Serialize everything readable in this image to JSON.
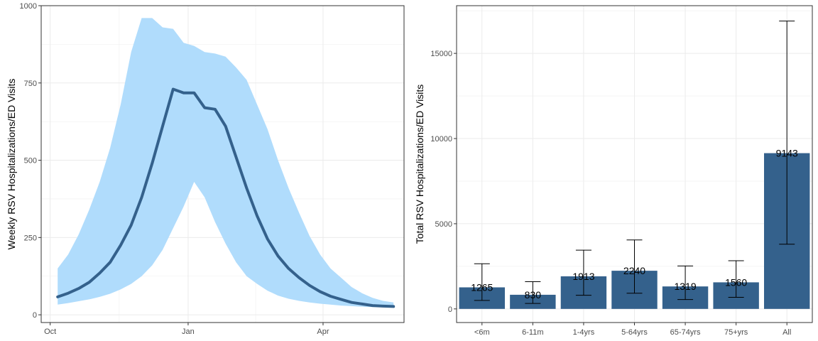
{
  "chart_data": [
    {
      "type": "line",
      "ylabel": "Weekly RSV Hospitalizations/ED Visits",
      "xlabel": "",
      "xlim": [
        "2021-09-25",
        "2022-05-25"
      ],
      "ylim": [
        -25,
        1000
      ],
      "x_ticks": [
        "Oct",
        "Jan",
        "Apr"
      ],
      "x_tick_dates": [
        "2021-10-01",
        "2022-01-01",
        "2022-04-01"
      ],
      "y_ticks": [
        0,
        250,
        500,
        750,
        1000
      ],
      "colors": {
        "line": "#34618c",
        "band": "#b0dcfc",
        "panel_border": "#333333",
        "grid": "#ebebeb"
      },
      "grid": true,
      "series": [
        {
          "x": [
            "2021-10-06",
            "2021-10-13",
            "2021-10-20",
            "2021-10-27",
            "2021-11-03",
            "2021-11-10",
            "2021-11-17",
            "2021-11-24",
            "2021-12-01",
            "2021-12-08",
            "2021-12-15",
            "2021-12-22",
            "2021-12-29",
            "2022-01-05",
            "2022-01-12",
            "2022-01-19",
            "2022-01-26",
            "2022-02-02",
            "2022-02-09",
            "2022-02-16",
            "2022-02-23",
            "2022-03-02",
            "2022-03-09",
            "2022-03-16",
            "2022-03-23",
            "2022-03-30",
            "2022-04-06",
            "2022-04-13",
            "2022-04-20",
            "2022-04-27",
            "2022-05-04",
            "2022-05-11",
            "2022-05-18"
          ],
          "y": [
            58,
            70,
            85,
            105,
            135,
            170,
            225,
            290,
            380,
            490,
            610,
            730,
            718,
            718,
            670,
            665,
            610,
            510,
            410,
            320,
            245,
            190,
            150,
            120,
            95,
            75,
            60,
            50,
            40,
            35,
            30,
            28,
            27
          ],
          "lower": [
            33,
            38,
            44,
            50,
            58,
            68,
            82,
            100,
            125,
            160,
            210,
            280,
            350,
            430,
            380,
            300,
            230,
            170,
            125,
            100,
            78,
            62,
            52,
            45,
            40,
            36,
            33,
            30,
            28,
            26,
            25,
            25,
            25
          ],
          "upper": [
            150,
            195,
            260,
            340,
            430,
            540,
            680,
            850,
            960,
            960,
            930,
            925,
            880,
            870,
            850,
            845,
            835,
            800,
            760,
            680,
            600,
            500,
            410,
            330,
            255,
            195,
            150,
            120,
            90,
            70,
            55,
            45,
            40
          ]
        }
      ]
    },
    {
      "type": "bar",
      "ylabel": "Total RSV Hospitalizations/ED Visits",
      "xlabel": "",
      "ylim": [
        -800,
        17800
      ],
      "y_ticks": [
        0,
        5000,
        10000,
        15000
      ],
      "categories": [
        "<6m",
        "6-11m",
        "1-4yrs",
        "5-64yrs",
        "65-74yrs",
        "75+yrs",
        "All"
      ],
      "values": [
        1265,
        830,
        1913,
        2240,
        1319,
        1560,
        9143
      ],
      "data_labels": [
        "1265",
        "830",
        "1913",
        "2240",
        "1319",
        "1560",
        "9143"
      ],
      "error_low": [
        500,
        320,
        800,
        920,
        550,
        680,
        3800
      ],
      "error_high": [
        2650,
        1600,
        3450,
        4050,
        2520,
        2830,
        16900
      ],
      "colors": {
        "bar": "#34618c",
        "error": "#000000"
      },
      "grid": true
    }
  ]
}
